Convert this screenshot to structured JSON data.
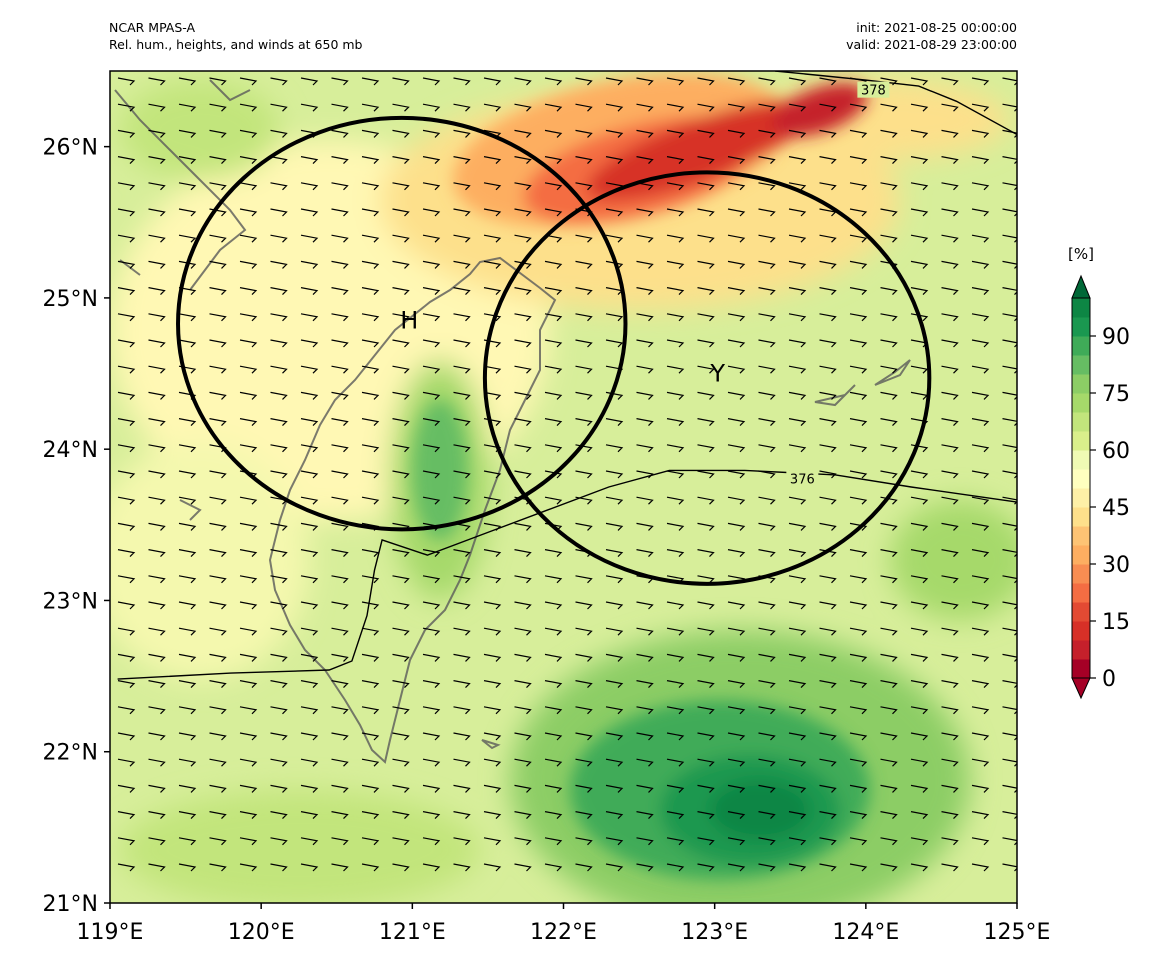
{
  "header": {
    "left_line1": "NCAR MPAS-A",
    "left_line2": "Rel. hum., heights, and winds at 650 mb",
    "right_line1": "init: 2021-08-25 00:00:00",
    "right_line2": "valid: 2021-08-29 23:00:00"
  },
  "map": {
    "lon_range": [
      119,
      125
    ],
    "lat_range": [
      21,
      26.5
    ],
    "x_ticks": [
      "119°E",
      "120°E",
      "121°E",
      "122°E",
      "123°E",
      "124°E",
      "125°E"
    ],
    "y_ticks": [
      "21°N",
      "22°N",
      "23°N",
      "24°N",
      "25°N",
      "26°N"
    ],
    "markers": [
      {
        "label": "H",
        "lon": 120.98,
        "lat": 24.85
      },
      {
        "label": "Y",
        "lon": 123.02,
        "lat": 24.5
      }
    ],
    "circles": [
      {
        "name": "circle-around-H",
        "center_lon": 120.93,
        "center_lat": 24.83,
        "radius_lon": 1.48,
        "radius_lat": 1.36
      },
      {
        "name": "circle-around-Y",
        "center_lon": 122.95,
        "center_lat": 24.47,
        "radius_lon": 1.47,
        "radius_lat": 1.36
      }
    ],
    "height_contours": [
      {
        "label": "376",
        "points": [
          [
            119.05,
            22.48
          ],
          [
            119.8,
            22.52
          ],
          [
            120.45,
            22.54
          ],
          [
            120.6,
            22.6
          ],
          [
            120.7,
            22.9
          ],
          [
            120.75,
            23.2
          ],
          [
            120.8,
            23.4
          ],
          [
            121.1,
            23.3
          ],
          [
            121.5,
            23.45
          ],
          [
            121.9,
            23.6
          ],
          [
            122.3,
            23.75
          ],
          [
            122.7,
            23.86
          ],
          [
            123.2,
            23.86
          ],
          [
            123.8,
            23.83
          ],
          [
            124.3,
            23.75
          ],
          [
            125,
            23.65
          ]
        ],
        "label_lon": 123.58,
        "label_lat": 23.8
      },
      {
        "label": "378",
        "points": [
          [
            123.4,
            26.5
          ],
          [
            123.7,
            26.47
          ],
          [
            124.0,
            26.44
          ],
          [
            124.35,
            26.4
          ],
          [
            124.6,
            26.3
          ],
          [
            125,
            26.08
          ]
        ],
        "label_lon": 124.05,
        "label_lat": 26.37
      }
    ],
    "colors": {
      "base": "#d7ee9a",
      "light_yellow": "#fff8b4",
      "dry_core": "#d73027",
      "moist_core": "#006837",
      "coast": "#5a5a5a"
    }
  },
  "colorbar": {
    "unit": "[%]",
    "levels": [
      0,
      5,
      10,
      15,
      20,
      25,
      30,
      35,
      40,
      45,
      50,
      55,
      60,
      65,
      70,
      75,
      80,
      85,
      90,
      95,
      100
    ],
    "tick_labels": [
      "0",
      "15",
      "30",
      "45",
      "60",
      "75",
      "90"
    ],
    "colors": [
      "#a50026",
      "#c5202b",
      "#d73027",
      "#e34a33",
      "#f46d43",
      "#f88d52",
      "#fdae61",
      "#fdc374",
      "#fee08b",
      "#fef0a7",
      "#ffffbf",
      "#effab4",
      "#d9ef8b",
      "#c2e57c",
      "#a6d96a",
      "#8ccd65",
      "#66bd63",
      "#3fab58",
      "#1a9850",
      "#0d8644",
      "#006837"
    ]
  }
}
